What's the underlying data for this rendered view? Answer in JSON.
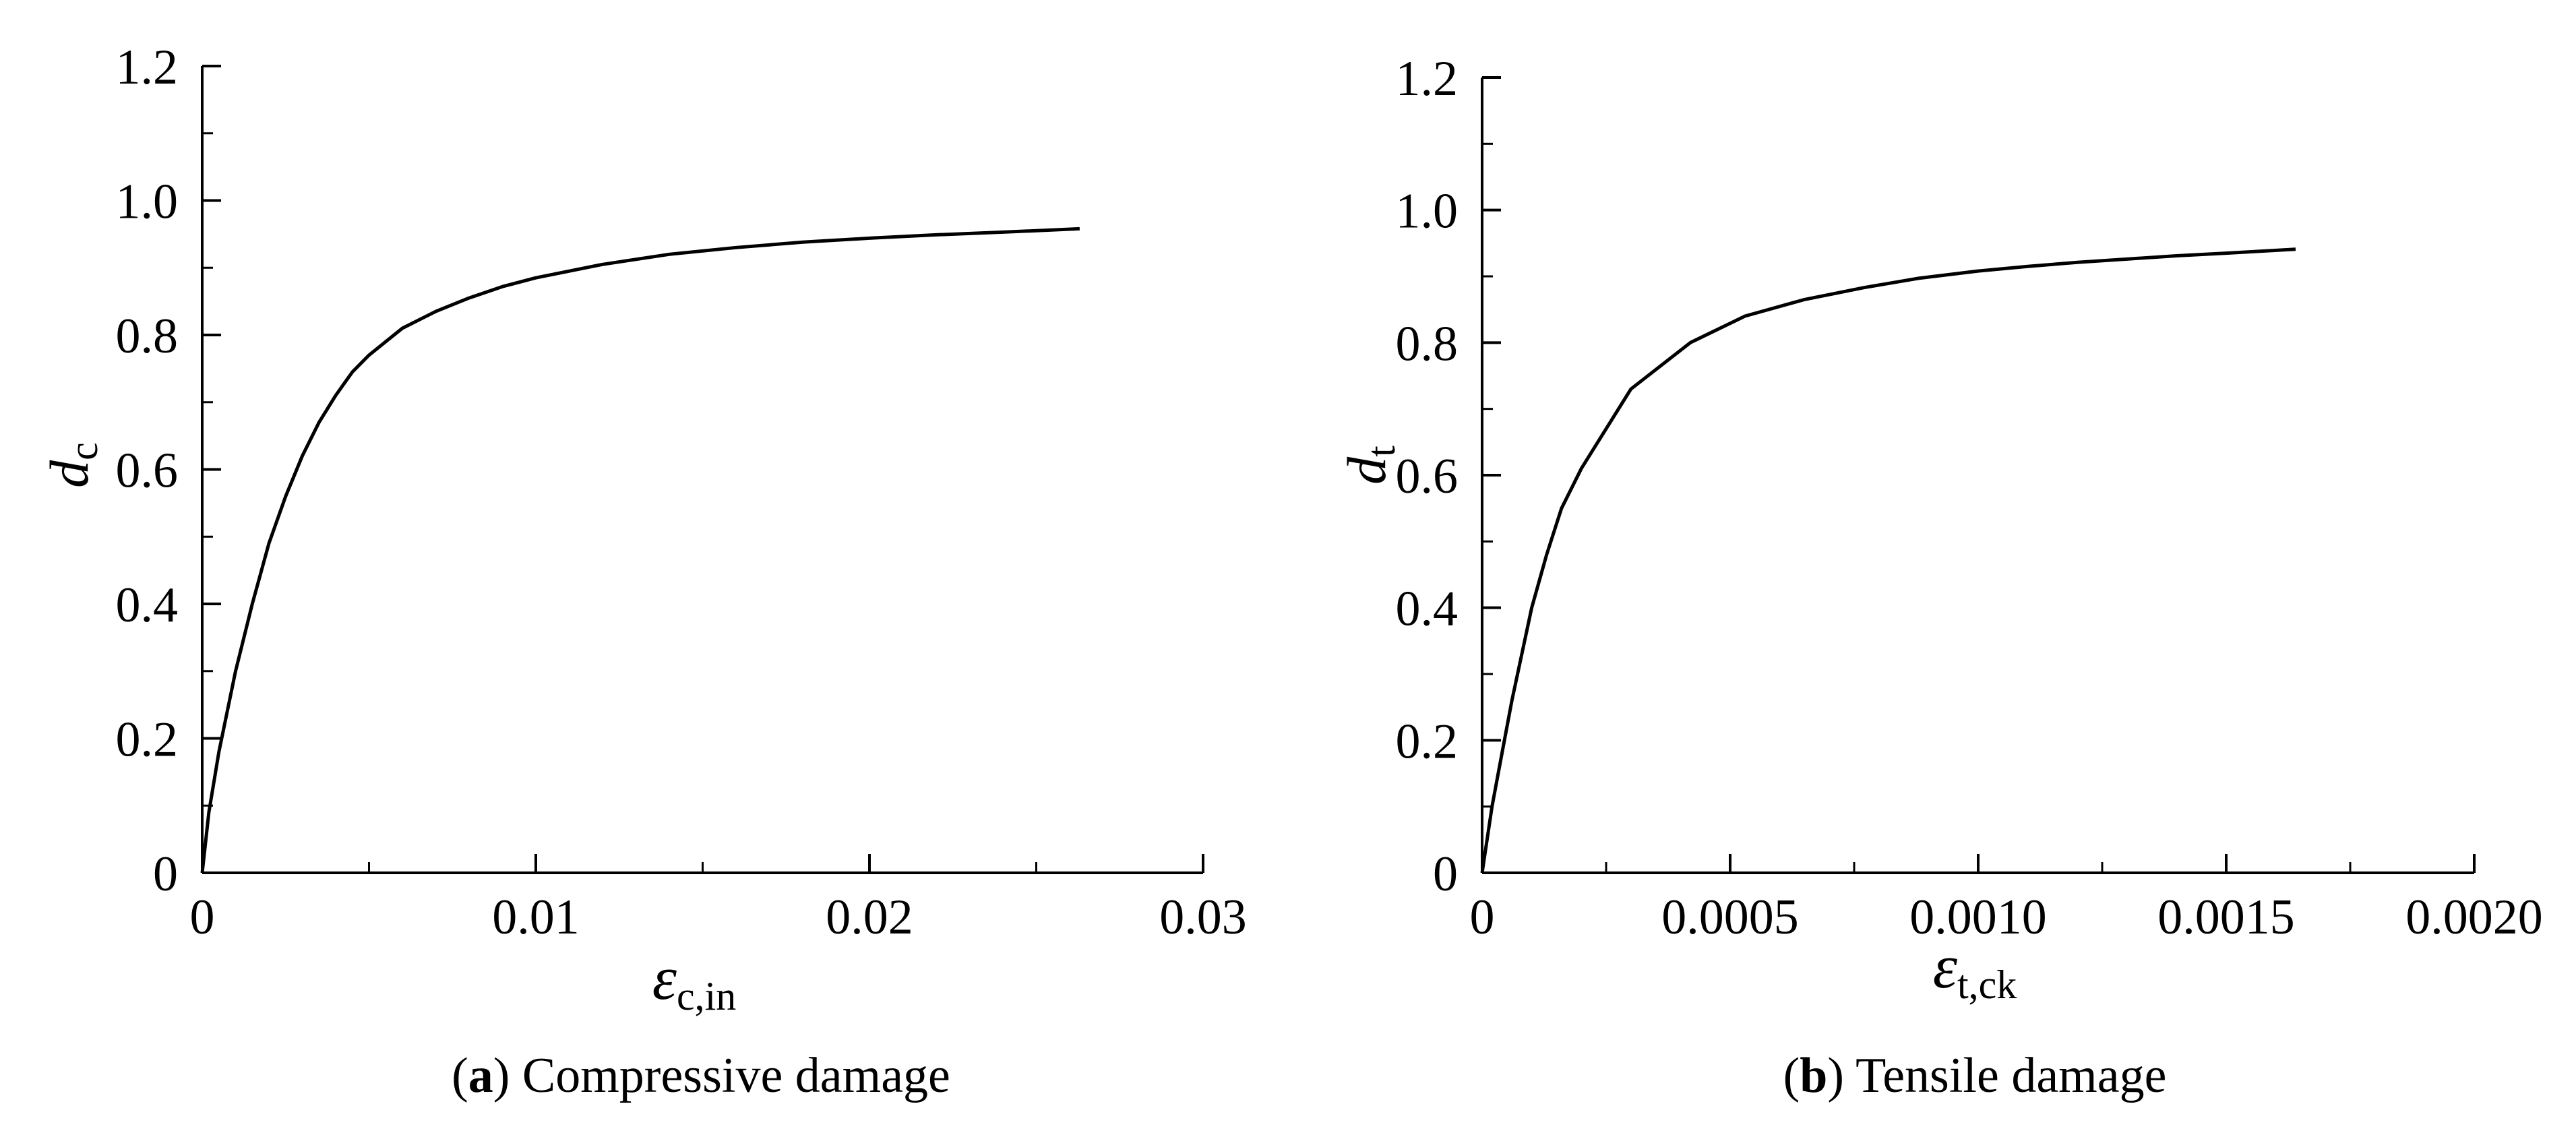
{
  "chart_data": [
    {
      "type": "line",
      "caption": {
        "open": "(",
        "tag": "a",
        "close": ")",
        "text": " Compressive damage"
      },
      "ylabel": {
        "symbol": "d",
        "sub": "c"
      },
      "xlabel": {
        "symbol": "ε",
        "sub": "c,in"
      },
      "xlim": [
        0,
        0.03
      ],
      "ylim": [
        0,
        1.2
      ],
      "x_ticks": [
        0,
        0.01,
        0.02,
        0.03
      ],
      "x_tick_labels": [
        "0",
        "0.01",
        "0.02",
        "0.03"
      ],
      "x_minor_ticks": [
        0.005,
        0.015,
        0.025
      ],
      "y_ticks": [
        0,
        0.2,
        0.4,
        0.6,
        0.8,
        1.0,
        1.2
      ],
      "y_tick_labels": [
        "0",
        "0.2",
        "0.4",
        "0.6",
        "0.8",
        "1.0",
        "1.2"
      ],
      "y_minor_ticks": [
        0.1,
        0.3,
        0.5,
        0.7,
        0.9,
        1.1
      ],
      "grid": false,
      "series": [
        {
          "x": [
            0,
            0.0002,
            0.0005,
            0.001,
            0.0015,
            0.002,
            0.0025,
            0.003,
            0.0035,
            0.004,
            0.0045,
            0.005,
            0.006,
            0.007,
            0.008,
            0.009,
            0.01,
            0.012,
            0.014,
            0.016,
            0.018,
            0.02,
            0.022,
            0.024,
            0.0263
          ],
          "y": [
            0,
            0.09,
            0.18,
            0.3,
            0.4,
            0.49,
            0.56,
            0.62,
            0.67,
            0.71,
            0.745,
            0.77,
            0.81,
            0.835,
            0.855,
            0.872,
            0.885,
            0.905,
            0.92,
            0.93,
            0.938,
            0.944,
            0.949,
            0.953,
            0.958
          ]
        }
      ]
    },
    {
      "type": "line",
      "caption": {
        "open": "(",
        "tag": "b",
        "close": ")",
        "text": " Tensile damage"
      },
      "ylabel": {
        "symbol": "d",
        "sub": "t"
      },
      "xlabel": {
        "symbol": "ε",
        "sub": "t,ck"
      },
      "xlim": [
        0,
        0.002
      ],
      "ylim": [
        0,
        1.2
      ],
      "x_ticks": [
        0,
        0.0005,
        0.001,
        0.0015,
        0.002
      ],
      "x_tick_labels": [
        "0",
        "0.0005",
        "0.0010",
        "0.0015",
        "0.0020"
      ],
      "x_minor_ticks": [
        0.00025,
        0.00075,
        0.00125,
        0.00175
      ],
      "y_ticks": [
        0,
        0.2,
        0.4,
        0.6,
        0.8,
        1.0,
        1.2
      ],
      "y_tick_labels": [
        "0",
        "0.2",
        "0.4",
        "0.6",
        "0.8",
        "1.0",
        "1.2"
      ],
      "y_minor_ticks": [
        0.1,
        0.3,
        0.5,
        0.7,
        0.9,
        1.1
      ],
      "grid": false,
      "series": [
        {
          "x": [
            0,
            2e-05,
            4e-05,
            6e-05,
            8e-05,
            0.0001,
            0.00013,
            0.00016,
            0.0002,
            0.00025,
            0.0003,
            0.00042,
            0.00053,
            0.00065,
            0.00077,
            0.00088,
            0.001,
            0.0011,
            0.0012,
            0.0013,
            0.0014,
            0.0015,
            0.00164
          ],
          "y": [
            0,
            0.1,
            0.18,
            0.26,
            0.33,
            0.4,
            0.48,
            0.55,
            0.61,
            0.67,
            0.73,
            0.8,
            0.84,
            0.865,
            0.883,
            0.897,
            0.908,
            0.915,
            0.921,
            0.926,
            0.931,
            0.935,
            0.941
          ]
        }
      ]
    }
  ]
}
